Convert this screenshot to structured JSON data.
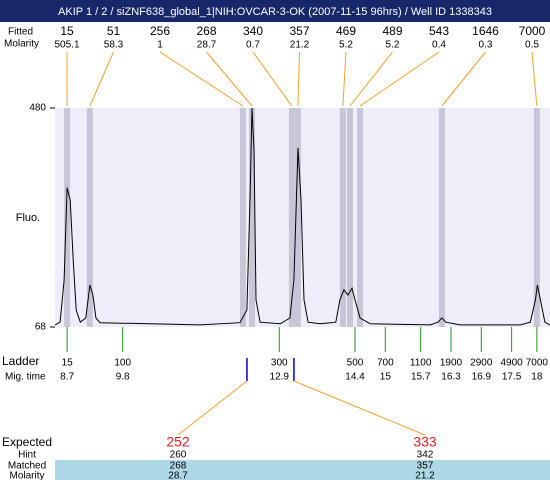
{
  "title": "AKIP 1 / 2 / siZNF638_global_1|NIH:OVCAR-3-OK (2007-11-15 96hrs) / Well ID 1338343",
  "peaks": {
    "size_label": "Fitted",
    "molarity_label": "Molarity",
    "items": [
      {
        "size": 15,
        "molarity": 505.1,
        "time": 8.7
      },
      {
        "size": 51,
        "molarity": 58.3,
        "time": 9.15
      },
      {
        "size": 256,
        "molarity": 1,
        "time": 12.18
      },
      {
        "size": 268,
        "molarity": 28.7,
        "time": 12.36
      },
      {
        "size": 340,
        "molarity": 0.7,
        "time": 13.15
      },
      {
        "size": 357,
        "molarity": 21.2,
        "time": 13.27
      },
      {
        "size": 469,
        "molarity": 5.2,
        "time": 14.16
      },
      {
        "size": 489,
        "molarity": 5.2,
        "time": 14.3
      },
      {
        "size": 543,
        "molarity": 0.4,
        "time": 14.5
      },
      {
        "size": 1646,
        "molarity": 0.3,
        "time": 16.12
      },
      {
        "size": 7000,
        "molarity": 0.5,
        "time": 18
      }
    ]
  },
  "plot": {
    "ylabel": "Fluo.",
    "ylim": [
      68,
      480
    ],
    "yticks": [
      68,
      480
    ],
    "xlim": [
      8.46,
      18.26
    ],
    "trace": {
      "time": [
        8.46,
        8.56,
        8.64,
        8.7,
        8.76,
        8.82,
        8.88,
        8.96,
        9.07,
        9.15,
        9.21,
        9.27,
        9.35,
        10.34,
        11.33,
        12.12,
        12.26,
        12.32,
        12.36,
        12.4,
        12.44,
        12.52,
        12.92,
        13.11,
        13.19,
        13.27,
        13.33,
        13.39,
        13.47,
        13.71,
        14.02,
        14.1,
        14.18,
        14.26,
        14.34,
        14.4,
        14.5,
        14.7,
        15.89,
        16.04,
        16.12,
        16.2,
        16.48,
        17.67,
        17.87,
        17.97,
        18.01,
        18.07,
        18.16,
        18.26
      ],
      "values": [
        72,
        77,
        156,
        330,
        307,
        194,
        100,
        77,
        85,
        147,
        128,
        85,
        76,
        74,
        72,
        76,
        100,
        307,
        480,
        401,
        119,
        77,
        74,
        85,
        156,
        405,
        307,
        119,
        77,
        74,
        77,
        119,
        138,
        128,
        141,
        119,
        85,
        74,
        72,
        77,
        85,
        77,
        72,
        72,
        77,
        119,
        147,
        119,
        77,
        72
      ]
    }
  },
  "ladder": {
    "label": "Ladder",
    "time_label": "Mig. time",
    "sizes": [
      15,
      100,
      300,
      500,
      700,
      1100,
      1900,
      2900,
      4900,
      7000
    ],
    "times": [
      8.7,
      9.8,
      12.9,
      14.4,
      15,
      15.7,
      16.3,
      16.9,
      17.5,
      18
    ]
  },
  "expected": {
    "labels": {
      "expected": "Expected",
      "hint": "Hint",
      "matched": "Matched",
      "molarity": "Molarity"
    },
    "items": [
      {
        "expected": 252,
        "hint": 260,
        "matched": 268,
        "molarity": 28.7,
        "time": 12.26
      },
      {
        "expected": 333,
        "hint": 342,
        "matched": 357,
        "molarity": 21.2,
        "time": 13.19
      }
    ]
  }
}
